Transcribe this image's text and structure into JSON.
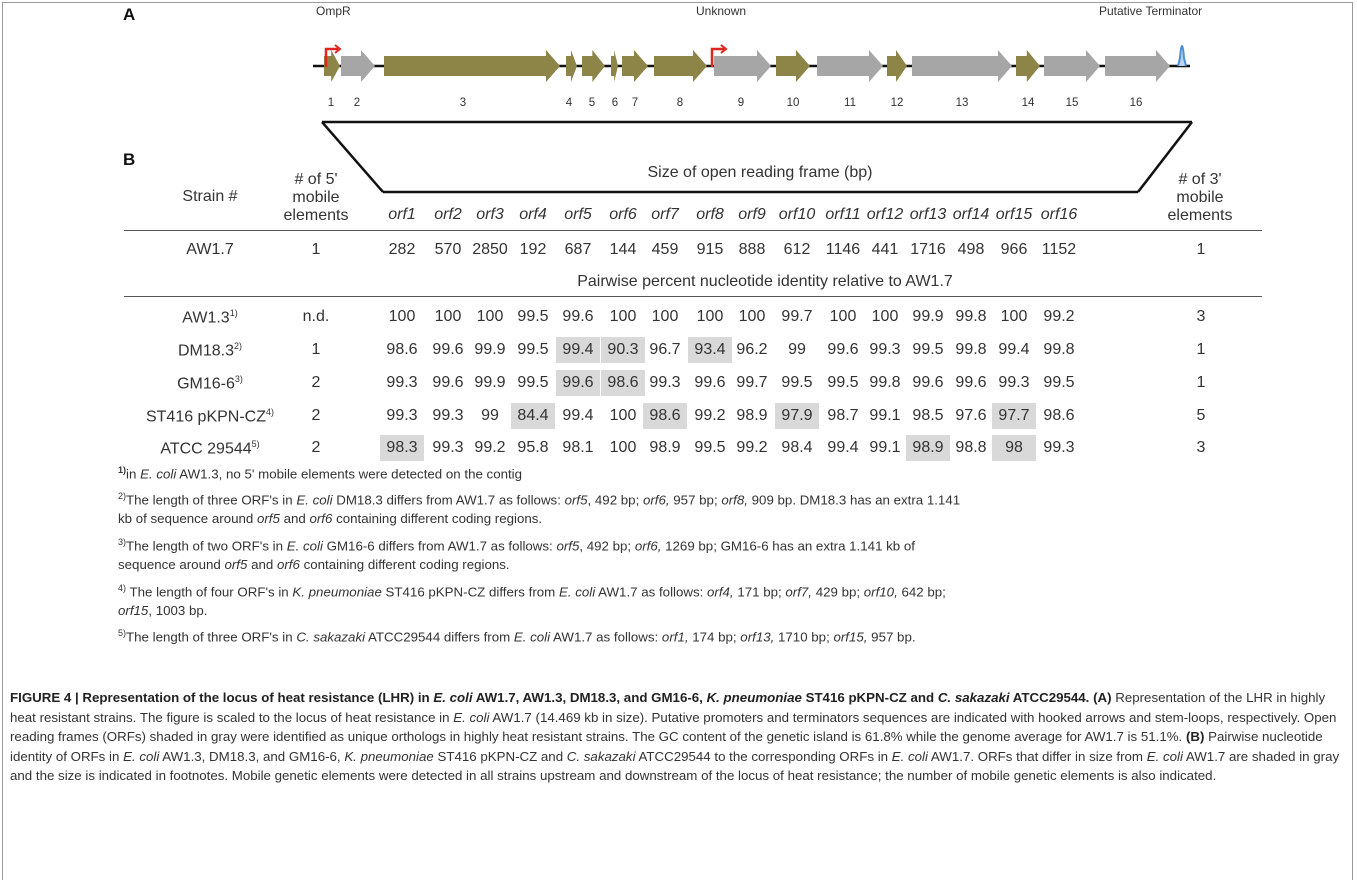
{
  "panel_a": {
    "letter": "A",
    "labels": {
      "ompr": "OmpR",
      "unknown": "Unknown",
      "terminator": "Putative Terminator"
    },
    "orf_numbers": [
      "1",
      "2",
      "3",
      "4",
      "5",
      "6",
      "7",
      "8",
      "9",
      "10",
      "11",
      "12",
      "13",
      "14",
      "15",
      "16"
    ],
    "colors": {
      "olive": "#8c8547",
      "gray": "#a6a6a6",
      "promoter": "#e0251f",
      "terminator": "#4f8fd6"
    }
  },
  "panel_b": {
    "letter": "B",
    "header": {
      "strain": "Strain #",
      "five_prime": [
        "# of 5'",
        "mobile",
        "elements"
      ],
      "size_title": "Size of open reading frame (bp)",
      "three_prime": [
        "# of 3'",
        "mobile",
        "elements"
      ],
      "orfs": [
        "orf1",
        "orf2",
        "orf3",
        "orf4",
        "orf5",
        "orf6",
        "orf7",
        "orf8",
        "orf9",
        "orf10",
        "orf11",
        "orf12",
        "orf13",
        "orf14",
        "orf15",
        "orf16"
      ]
    },
    "reference": {
      "strain": "AW1.7",
      "five": "1",
      "values": [
        "282",
        "570",
        "2850",
        "192",
        "687",
        "144",
        "459",
        "915",
        "888",
        "612",
        "1146",
        "441",
        "1716",
        "498",
        "966",
        "1152"
      ],
      "three": "1"
    },
    "identity_title": "Pairwise percent nucleotide identity relative to AW1.7",
    "rows": [
      {
        "strain": "AW1.3",
        "sup": "1)",
        "five": "n.d.",
        "values": [
          "100",
          "100",
          "100",
          "99.5",
          "99.6",
          "100",
          "100",
          "100",
          "100",
          "99.7",
          "100",
          "100",
          "99.9",
          "99.8",
          "100",
          "99.2"
        ],
        "three": "3"
      },
      {
        "strain": "DM18.3",
        "sup": "2)",
        "five": "1",
        "values": [
          "98.6",
          "99.6",
          "99.9",
          "99.5",
          "99.4",
          "90.3",
          "96.7",
          "93.4",
          "96.2",
          "99",
          "99.6",
          "99.3",
          "99.5",
          "99.8",
          "99.4",
          "99.8"
        ],
        "three": "1"
      },
      {
        "strain": "GM16-6",
        "sup": "3)",
        "five": "2",
        "values": [
          "99.3",
          "99.6",
          "99.9",
          "99.5",
          "99.6",
          "98.6",
          "99.3",
          "99.6",
          "99.7",
          "99.5",
          "99.5",
          "99.8",
          "99.6",
          "99.6",
          "99.3",
          "99.5"
        ],
        "three": "1"
      },
      {
        "strain": "ST416 pKPN-CZ",
        "sup": "4)",
        "five": "2",
        "values": [
          "99.3",
          "99.3",
          "99",
          "84.4",
          "99.4",
          "100",
          "98.6",
          "99.2",
          "98.9",
          "97.9",
          "98.7",
          "99.1",
          "98.5",
          "97.6",
          "97.7",
          "98.6"
        ],
        "three": "5"
      },
      {
        "strain": "ATCC 29544",
        "sup": "5)",
        "five": "2",
        "values": [
          "98.3",
          "99.3",
          "99.2",
          "95.8",
          "98.1",
          "100",
          "98.9",
          "99.5",
          "99.2",
          "98.4",
          "99.4",
          "99.1",
          "98.9",
          "98.8",
          "98",
          "99.3"
        ],
        "three": "3"
      }
    ]
  },
  "footnotes": {
    "f1": {
      "sup": "1)",
      "a": "in ",
      "sp": "E. coli",
      "b": " AW1.3, no 5' mobile elements were detected on the contig"
    },
    "f2": {
      "sup": "2)",
      "a": "The length of three ORF's in ",
      "sp": "E. coli",
      "b": " DM18.3 differs from AW1.7 as follows: ",
      "o1": "orf5",
      "c": ", 492 bp; ",
      "o2": "orf6,",
      "d": " 957 bp; ",
      "o3": "orf8,",
      "e": " 909 bp. DM18.3 has an extra 1.141",
      "line2a": "kb of sequence around ",
      "o4": "orf5",
      "line2b": " and ",
      "o5": "orf6",
      "line2c": " containing different coding regions."
    },
    "f3": {
      "sup": "3)",
      "a": "The length of two ORF's in ",
      "sp": "E. coli",
      "b": " GM16-6 differs from AW1.7 as follows: ",
      "o1": "orf5",
      "c": ", 492 bp; ",
      "o2": "orf6,",
      "d": " 1269 bp; GM16-6 has an extra 1.141 kb of",
      "line2a": "sequence around ",
      "o3": "orf5",
      "line2b": " and ",
      "o4": "orf6",
      "line2c": " containing different coding regions."
    },
    "f4": {
      "sup": "4)",
      "a": " The length of four ORF's in ",
      "sp": "K. pneumoniae",
      "b": " ST416 pKPN-CZ differs from ",
      "sp2": "E. coli",
      "c": " AW1.7 as follows: ",
      "o1": "orf4,",
      "d": " 171 bp; ",
      "o2": "orf7,",
      "e": " 429 bp; ",
      "o3": "orf10,",
      "f": " 642 bp;",
      "o4": "orf15",
      "g": ", 1003 bp."
    },
    "f5": {
      "sup": "5)",
      "a": "The length of three ORF's in ",
      "sp": "C. sakazaki",
      "b": " ATCC29544 differs from ",
      "sp2": "E. coli",
      "c": " AW1.7 as follows: ",
      "o1": "orf1,",
      "d": " 174 bp; ",
      "o2": "orf13,",
      "e": " 1710 bp; ",
      "o3": "orf15,",
      "f": " 957 bp."
    }
  },
  "caption": {
    "title_a": "FIGURE 4 | Representation of the locus of heat resistance (LHR) in ",
    "title_sp1": "E. coli",
    "title_b": " AW1.7, AW1.3, DM18.3, and GM16-6, ",
    "title_sp2": "K. pneumoniae",
    "title_c": " ST416 pKPN-CZ and ",
    "title_sp3": "C.",
    "title_sp3b": "sakazaki",
    "title_d": " ATCC29544. ",
    "a_label": "(A)",
    "a_text1": " Representation of the LHR in highly heat resistant strains. The figure is scaled to the locus of heat resistance in ",
    "a_sp": "E. coli",
    "a_text2": " AW1.7 (14.469 kb in size). Putative promoters and terminators sequences are indicated with hooked arrows and stem-loops, respectively. Open reading frames (ORFs) shaded in gray were identified as unique orthologs in highly heat resistant strains. The GC content of the genetic island is 61.8% while the genome average for AW1.7 is 51.1%. ",
    "b_label": "(B)",
    "b_text1": " Pairwise nucleotide identity of ORFs in ",
    "b_sp1": "E. coli",
    "b_text2": " AW1.3, DM18.3, and GM16-6, ",
    "b_sp2": "K. pneumoniae",
    "b_text3": " ST416 pKPN-CZ and ",
    "b_sp3": "C. sakazaki",
    "b_text4": " ATCC29544 to the corresponding ORFs in ",
    "b_sp4": "E. coli",
    "b_text5": " AW1.7. ORFs that differ in size from ",
    "b_sp5": "E. coli",
    "b_text6": " AW1.7 are shaded in gray and the size is indicated in footnotes. Mobile genetic elements were detected in all strains upstream and downstream of the locus of heat resistance; the number of mobile genetic elements is also indicated."
  }
}
